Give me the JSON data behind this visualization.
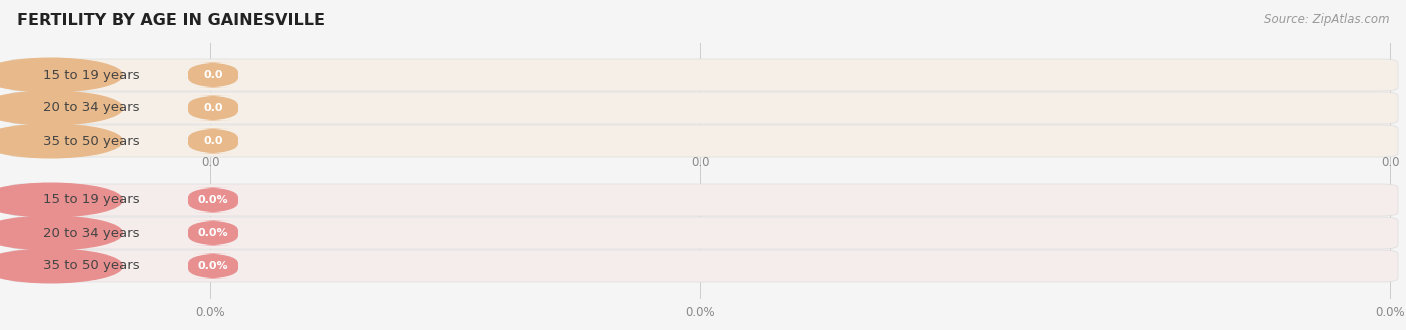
{
  "title": "FERTILITY BY AGE IN GAINESVILLE",
  "source_text": "Source: ZipAtlas.com",
  "top_section": {
    "categories": [
      "15 to 19 years",
      "20 to 34 years",
      "35 to 50 years"
    ],
    "values": [
      0.0,
      0.0,
      0.0
    ],
    "bar_bg_color": "#f5efe8",
    "bar_fill_color": "#e8b98a",
    "label_color": "#444444",
    "value_label_color": "#ffffff",
    "value_format": "0.0",
    "axis_labels": [
      "0.0",
      "0.0",
      "0.0"
    ]
  },
  "bottom_section": {
    "categories": [
      "15 to 19 years",
      "20 to 34 years",
      "35 to 50 years"
    ],
    "values": [
      0.0,
      0.0,
      0.0
    ],
    "bar_bg_color": "#f5ecec",
    "bar_fill_color": "#e89090",
    "label_color": "#444444",
    "value_label_color": "#ffffff",
    "value_format": "0.0%",
    "axis_labels": [
      "0.0%",
      "0.0%",
      "0.0%"
    ]
  },
  "background_color": "#f5f5f5",
  "title_color": "#222222",
  "source_color": "#999999",
  "fig_width": 14.06,
  "fig_height": 3.3,
  "dpi": 100
}
